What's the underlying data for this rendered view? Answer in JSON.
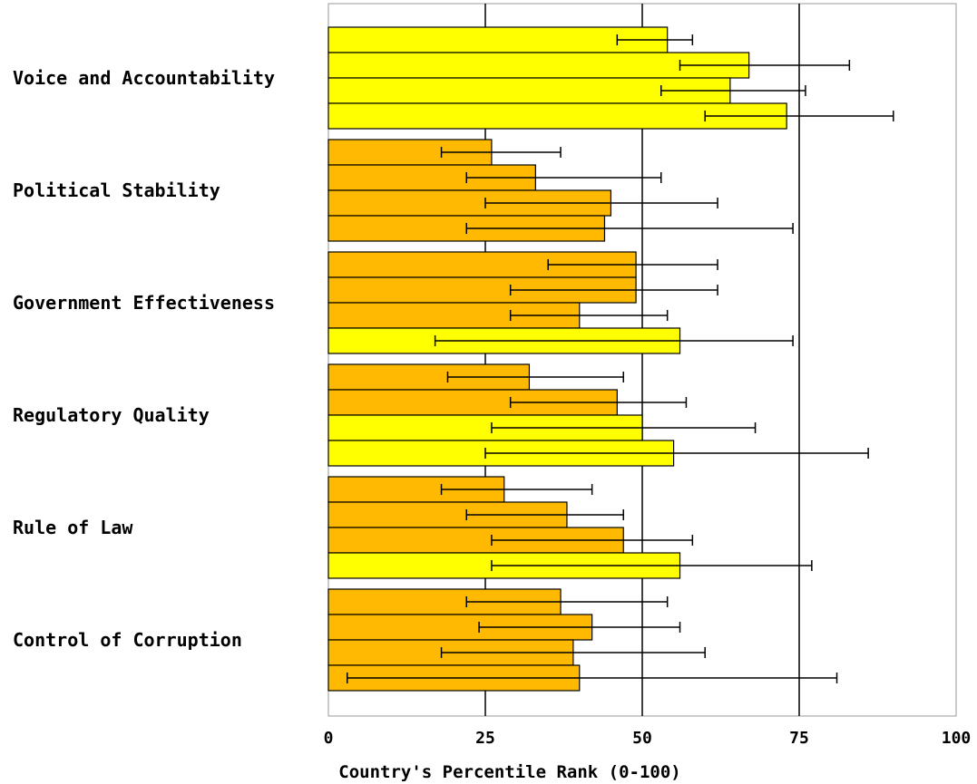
{
  "colors": {
    "above_median": "#ffff00",
    "below_median": "#ffb900",
    "outline": "#000000",
    "gridline": "#000000",
    "frame": "#999999"
  },
  "chart_data": {
    "type": "bar",
    "orientation": "horizontal",
    "xlabel": "Country's Percentile Rank (0-100)",
    "xlim": [
      0,
      100
    ],
    "xticks": [
      0,
      25,
      50,
      75,
      100
    ],
    "grid": "vertical",
    "categories": [
      "Voice and Accountability",
      "Political Stability",
      "Government Effectiveness",
      "Regulatory Quality",
      "Rule of Law",
      "Control of Corruption"
    ],
    "groups": [
      {
        "bars": [
          {
            "value": 54,
            "low": 46,
            "high": 58,
            "fill": "above_median"
          },
          {
            "value": 67,
            "low": 56,
            "high": 83,
            "fill": "above_median"
          },
          {
            "value": 64,
            "low": 53,
            "high": 76,
            "fill": "above_median"
          },
          {
            "value": 73,
            "low": 60,
            "high": 90,
            "fill": "above_median"
          }
        ]
      },
      {
        "bars": [
          {
            "value": 26,
            "low": 18,
            "high": 37,
            "fill": "below_median"
          },
          {
            "value": 33,
            "low": 22,
            "high": 53,
            "fill": "below_median"
          },
          {
            "value": 45,
            "low": 25,
            "high": 62,
            "fill": "below_median"
          },
          {
            "value": 44,
            "low": 22,
            "high": 74,
            "fill": "below_median"
          }
        ]
      },
      {
        "bars": [
          {
            "value": 49,
            "low": 35,
            "high": 62,
            "fill": "below_median"
          },
          {
            "value": 49,
            "low": 29,
            "high": 62,
            "fill": "below_median"
          },
          {
            "value": 40,
            "low": 29,
            "high": 54,
            "fill": "below_median"
          },
          {
            "value": 56,
            "low": 17,
            "high": 74,
            "fill": "above_median"
          }
        ]
      },
      {
        "bars": [
          {
            "value": 32,
            "low": 19,
            "high": 47,
            "fill": "below_median"
          },
          {
            "value": 46,
            "low": 29,
            "high": 57,
            "fill": "below_median"
          },
          {
            "value": 50,
            "low": 26,
            "high": 68,
            "fill": "above_median"
          },
          {
            "value": 55,
            "low": 25,
            "high": 86,
            "fill": "above_median"
          }
        ]
      },
      {
        "bars": [
          {
            "value": 28,
            "low": 18,
            "high": 42,
            "fill": "below_median"
          },
          {
            "value": 38,
            "low": 22,
            "high": 47,
            "fill": "below_median"
          },
          {
            "value": 47,
            "low": 26,
            "high": 58,
            "fill": "below_median"
          },
          {
            "value": 56,
            "low": 26,
            "high": 77,
            "fill": "above_median"
          }
        ]
      },
      {
        "bars": [
          {
            "value": 37,
            "low": 22,
            "high": 54,
            "fill": "below_median"
          },
          {
            "value": 42,
            "low": 24,
            "high": 56,
            "fill": "below_median"
          },
          {
            "value": 39,
            "low": 18,
            "high": 60,
            "fill": "below_median"
          },
          {
            "value": 40,
            "low": 3,
            "high": 81,
            "fill": "below_median"
          }
        ]
      }
    ]
  }
}
